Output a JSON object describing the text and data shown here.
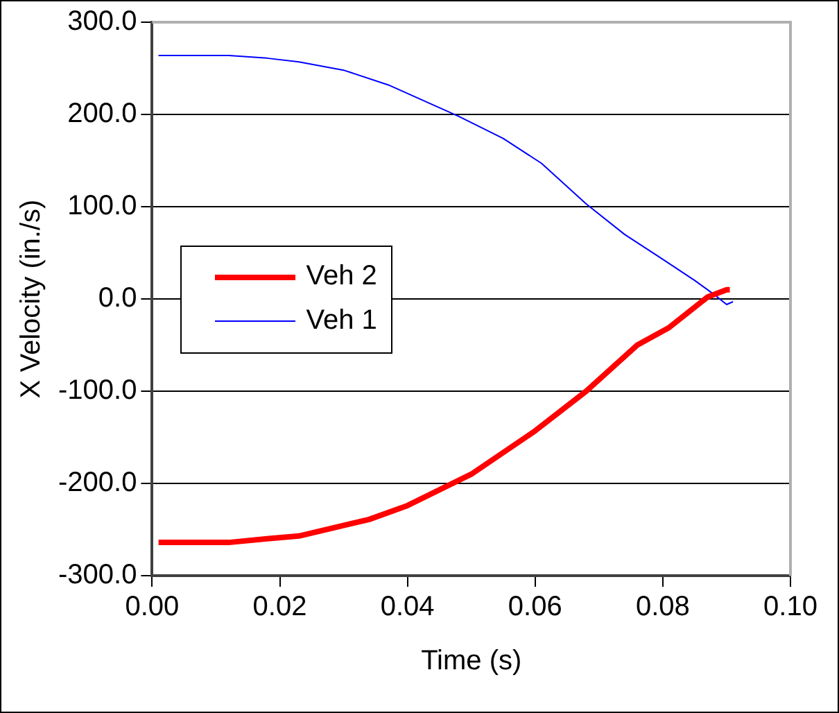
{
  "chart_data": {
    "type": "line",
    "xlabel": "Time (s)",
    "ylabel": "X Velocity (in./s)",
    "xlim": [
      0,
      0.1
    ],
    "xticks": [
      {
        "value": 0,
        "label": "0.00"
      },
      {
        "value": 0.02,
        "label": "0.02"
      },
      {
        "value": 0.04,
        "label": "0.04"
      },
      {
        "value": 0.06,
        "label": "0.06"
      },
      {
        "value": 0.08,
        "label": "0.08"
      },
      {
        "value": 0.1,
        "label": "0.10"
      }
    ],
    "ylim": [
      -300,
      300
    ],
    "yticks": [
      {
        "value": -300,
        "label": "-300.0"
      },
      {
        "value": -200,
        "label": "-200.0"
      },
      {
        "value": -100,
        "label": "-100.0"
      },
      {
        "value": 0,
        "label": "0.0"
      },
      {
        "value": 100,
        "label": "100.0"
      },
      {
        "value": 200,
        "label": "200.0"
      },
      {
        "value": 300,
        "label": "300.0"
      }
    ],
    "grid": "y",
    "legend": "left",
    "marker": "none",
    "series": [
      {
        "name": "Veh 2",
        "color": "#ff0000",
        "x": [
          0.001,
          0.012,
          0.018,
          0.023,
          0.034,
          0.04,
          0.05,
          0.06,
          0.068,
          0.076,
          0.081,
          0.087,
          0.09,
          0.0905
        ],
        "values": [
          -264,
          -264,
          -260,
          -257,
          -239,
          -224,
          -190,
          -143,
          -100,
          -50,
          -31,
          2,
          10,
          10
        ]
      },
      {
        "name": "Veh 1",
        "color": "#0000ff",
        "x": [
          0.001,
          0.012,
          0.018,
          0.023,
          0.03,
          0.037,
          0.048,
          0.055,
          0.061,
          0.068,
          0.074,
          0.08,
          0.085,
          0.088,
          0.09,
          0.091
        ],
        "values": [
          264,
          264,
          261,
          257,
          248,
          232,
          198,
          174,
          147,
          103,
          70,
          43,
          20,
          5,
          -6,
          -3
        ]
      }
    ]
  }
}
